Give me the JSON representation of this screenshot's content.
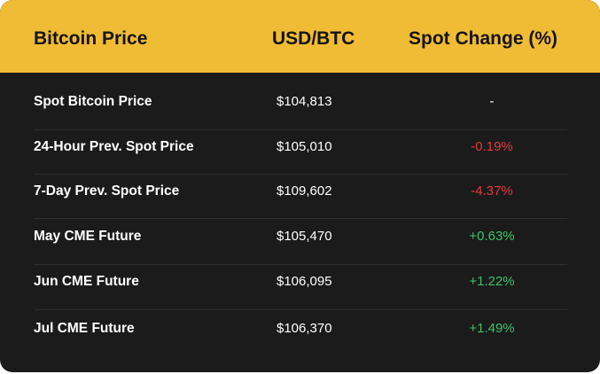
{
  "header": {
    "col1": "Bitcoin Price",
    "col2": "USD/BTC",
    "col3": "Spot Change (%)"
  },
  "colors": {
    "header_bg": "#f0bb35",
    "body_bg": "#1b1b1b",
    "negative": "#e5393f",
    "positive": "#3cc46a",
    "neutral": "#ffffff"
  },
  "rows": [
    {
      "label": "Spot Bitcoin Price",
      "price": "$104,813",
      "change": "-",
      "trend": "neutral"
    },
    {
      "label": "24-Hour Prev. Spot Price",
      "price": "$105,010",
      "change": "-0.19%",
      "trend": "negative"
    },
    {
      "label": "7-Day Prev. Spot Price",
      "price": "$109,602",
      "change": "-4.37%",
      "trend": "negative"
    },
    {
      "label": "May CME Future",
      "price": "$105,470",
      "change": "+0.63%",
      "trend": "positive"
    },
    {
      "label": "Jun CME Future",
      "price": "$106,095",
      "change": "+1.22%",
      "trend": "positive"
    },
    {
      "label": "Jul CME Future",
      "price": "$106,370",
      "change": "+1.49%",
      "trend": "positive"
    }
  ]
}
